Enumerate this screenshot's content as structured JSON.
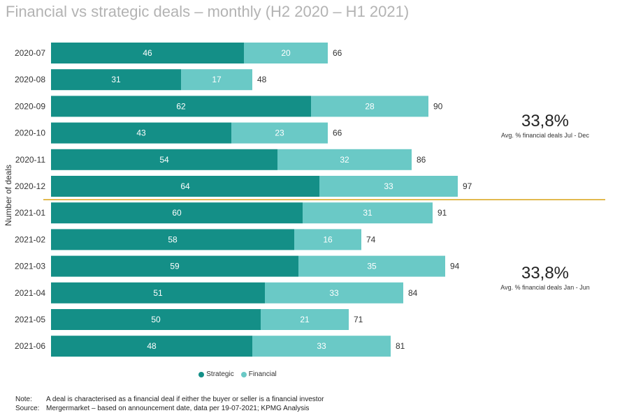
{
  "title": "Financial vs strategic deals – monthly (H2 2020 – H1 2021)",
  "colors": {
    "strategic": "#148f87",
    "financial": "#6ac9c6",
    "divider": "#d9a316"
  },
  "chart_data": {
    "type": "bar",
    "orientation": "horizontal",
    "stacked": true,
    "ylabel": "Number of deals",
    "categories": [
      "2020-07",
      "2020-08",
      "2020-09",
      "2020-10",
      "2020-11",
      "2020-12",
      "2021-01",
      "2021-02",
      "2021-03",
      "2021-04",
      "2021-05",
      "2021-06"
    ],
    "series": [
      {
        "name": "Strategic",
        "values": [
          46,
          31,
          62,
          43,
          54,
          64,
          60,
          58,
          59,
          51,
          50,
          48
        ]
      },
      {
        "name": "Financial",
        "values": [
          20,
          17,
          28,
          23,
          32,
          33,
          31,
          16,
          35,
          33,
          21,
          33
        ]
      }
    ],
    "totals": [
      66,
      48,
      90,
      66,
      86,
      97,
      91,
      74,
      94,
      84,
      71,
      81
    ],
    "xlim": [
      0,
      100
    ]
  },
  "annotations": {
    "h2": {
      "value": "33,8%",
      "caption": "Avg. % financial deals Jul - Dec"
    },
    "h1": {
      "value": "33,8%",
      "caption": "Avg. % financial deals Jan - Jun"
    }
  },
  "legend": [
    {
      "label": "Strategic",
      "color_key": "strategic"
    },
    {
      "label": "Financial",
      "color_key": "financial"
    }
  ],
  "notes": [
    {
      "key": "Note:",
      "text": "A deal is characterised as a financial deal if either the buyer or seller is a financial investor"
    },
    {
      "key": "Source:",
      "text": "Mergermarket – based on announcement date, data per 19-07-2021; KPMG Analysis"
    }
  ]
}
